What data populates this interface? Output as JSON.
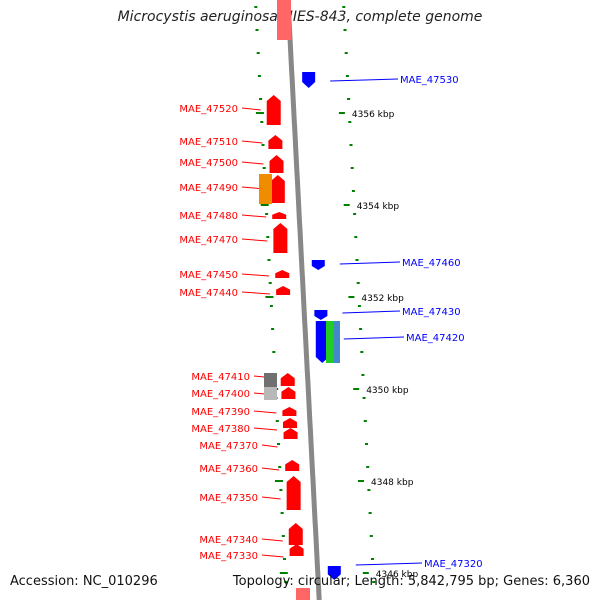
{
  "title": "Microcystis aeruginosa NIES-843, complete genome",
  "footer": {
    "accession": "Accession: NC_010296",
    "topology": "Topology: circular; Length: 5,842,795 bp; Genes: 6,360"
  },
  "colors": {
    "forward": "#ff0000",
    "reverse": "#0000ff",
    "backbone": "#888888",
    "ticks": "#008000",
    "ruler_text": "#000000"
  },
  "ruler": [
    {
      "label": "4356 kbp"
    },
    {
      "label": "4354 kbp"
    },
    {
      "label": "4352 kbp"
    },
    {
      "label": "4350 kbp"
    },
    {
      "label": "4348 kbp"
    },
    {
      "label": "4346 kbp"
    }
  ],
  "genes_forward": [
    {
      "label": "MAE_47520"
    },
    {
      "label": "MAE_47510"
    },
    {
      "label": "MAE_47500"
    },
    {
      "label": "MAE_47490"
    },
    {
      "label": "MAE_47480"
    },
    {
      "label": "MAE_47470"
    },
    {
      "label": "MAE_47450"
    },
    {
      "label": "MAE_47440"
    },
    {
      "label": "MAE_47410"
    },
    {
      "label": "MAE_47400"
    },
    {
      "label": "MAE_47390"
    },
    {
      "label": "MAE_47380"
    },
    {
      "label": "MAE_47370"
    },
    {
      "label": "MAE_47360"
    },
    {
      "label": "MAE_47350"
    },
    {
      "label": "MAE_47340"
    },
    {
      "label": "MAE_47330"
    }
  ],
  "genes_reverse": [
    {
      "label": "MAE_47530"
    },
    {
      "label": "MAE_47460"
    },
    {
      "label": "MAE_47430"
    },
    {
      "label": "MAE_47420"
    },
    {
      "label": "MAE_47320"
    }
  ]
}
